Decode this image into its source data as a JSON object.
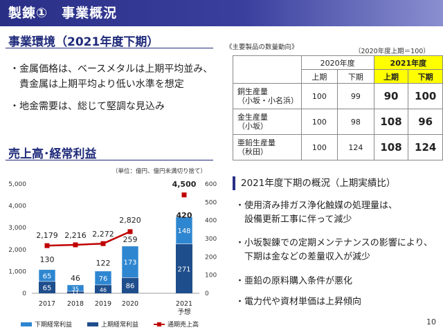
{
  "header": {
    "title": "製錬①　事業概況"
  },
  "environment": {
    "title": "事業環境（2021年度下期）",
    "bullets": [
      "・金属価格は、ベースメタルは上期平均並み、",
      "　貴金属は上期平均より低い水準を想定",
      "・地金需要は、総じて堅調な見込み"
    ]
  },
  "production_table": {
    "caption_left": "《主要製品の数量動向》",
    "caption_right": "（2020年度上期＝100）",
    "year_headers": [
      "2020年度",
      "2021年度"
    ],
    "half_headers": [
      "上期",
      "下期",
      "上期",
      "下期"
    ],
    "rows": [
      {
        "label_line1": "銅生産量",
        "label_line2": "（小坂・小名浜）",
        "values": [
          "100",
          "99",
          "90",
          "100"
        ]
      },
      {
        "label_line1": "金生産量",
        "label_line2": "（小坂）",
        "values": [
          "100",
          "98",
          "108",
          "96"
        ]
      },
      {
        "label_line1": "亜鉛生産量",
        "label_line2": "（秋田）",
        "values": [
          "100",
          "124",
          "108",
          "124"
        ]
      }
    ]
  },
  "sales_section": {
    "title": "売上高･経常利益",
    "unit_note": "（単位：億円、億円未満切り捨て）"
  },
  "chart_data": {
    "type": "bar",
    "categories": [
      "2017",
      "2018",
      "2019",
      "2020",
      "2021"
    ],
    "category_sub": [
      "",
      "",
      "",
      "",
      "予想"
    ],
    "left_axis": {
      "ylim": [
        0,
        5000
      ],
      "ticks": [
        "0",
        "1,000",
        "2,000",
        "3,000",
        "4,000",
        "5,000"
      ]
    },
    "right_axis": {
      "ylim": [
        0,
        600
      ],
      "ticks": [
        "0",
        "100",
        "200",
        "300",
        "400",
        "500",
        "600"
      ]
    },
    "series": [
      {
        "name": "上期経常利益",
        "axis": "right",
        "color": "#1f4e8c",
        "values": [
          65,
          11,
          46,
          86,
          271
        ]
      },
      {
        "name": "下期経常利益",
        "axis": "right",
        "color": "#2e86d0",
        "values": [
          65,
          35,
          76,
          173,
          148
        ]
      },
      {
        "name": "通期売上高",
        "axis": "left",
        "color": "#c00000",
        "values": [
          2179,
          2216,
          2272,
          2820,
          4500
        ]
      }
    ],
    "bar_labels_lower": [
      "65",
      "11",
      "46",
      "86",
      "271"
    ],
    "bar_labels_upper": [
      "65",
      "35",
      "76",
      "173",
      "148"
    ],
    "bar_totals": [
      "130",
      "46",
      "122",
      "259",
      "420"
    ],
    "sales_labels": [
      "2,179",
      "2,216",
      "2,272",
      "2,820",
      "4,500"
    ],
    "legend_order": [
      "下期経常利益",
      "上期経常利益",
      "通期売上高"
    ]
  },
  "summary": {
    "heading": "2021年度下期の概況（上期実績比）",
    "bullets": [
      [
        "・使用済み排ガス浄化触媒の処理量は、",
        "　設備更新工事に伴って減少"
      ],
      [
        "・小坂製錬での定期メンテナンスの影響により、",
        "　下期は金などの差量収入が減少"
      ],
      [
        "・亜鉛の原料購入条件が悪化"
      ],
      [
        "・電力代や資材単価は上昇傾向"
      ]
    ]
  },
  "footer": {
    "page_number": "10"
  }
}
